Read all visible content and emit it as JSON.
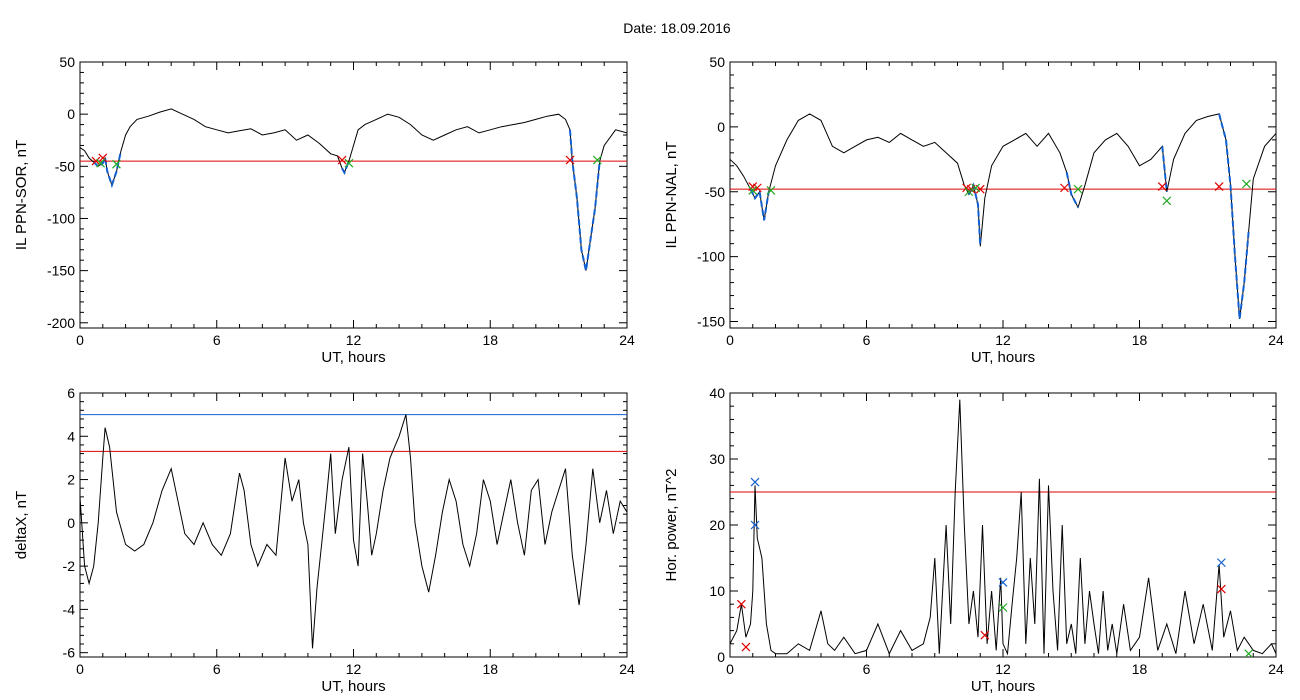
{
  "title": "Date:  18.09.2016",
  "colors": {
    "trace": "#000000",
    "threshold": "#e00000",
    "onset": "#e00000",
    "peak": "#22aa22",
    "substorm": "#1060d0",
    "cross_blue": "#1060d0"
  },
  "chart_data": [
    {
      "type": "line",
      "xlabel": "UT, hours",
      "ylabel": "IL PPN-SOR, nT",
      "xlim": [
        0,
        24
      ],
      "ylim": [
        -205,
        50
      ],
      "xticks": [
        0,
        6,
        12,
        18,
        24
      ],
      "yticks": [
        50,
        0,
        -50,
        -100,
        -150,
        -200
      ],
      "threshold": -45,
      "series": [
        {
          "x": [
            0,
            0.2,
            0.4,
            0.6,
            0.8,
            1.0,
            1.1,
            1.2,
            1.4,
            1.6,
            1.8,
            2.0,
            2.2,
            2.5,
            3.0,
            3.5,
            4.0,
            4.5,
            5.0,
            5.5,
            6.0,
            6.5,
            7.0,
            7.5,
            8.0,
            8.5,
            9.0,
            9.5,
            10.0,
            10.5,
            11.0,
            11.3,
            11.5,
            11.6,
            11.8,
            12.0,
            12.2,
            12.5,
            13.0,
            13.5,
            14.0,
            14.5,
            15.0,
            15.5,
            16.0,
            16.5,
            17.0,
            17.5,
            18.0,
            18.5,
            19.0,
            19.5,
            20.0,
            20.5,
            21.0,
            21.3,
            21.5,
            21.6,
            21.8,
            22.0,
            22.2,
            22.4,
            22.6,
            22.8,
            23.0,
            23.5,
            24.0
          ],
          "y": [
            -32,
            -35,
            -42,
            -46,
            -50,
            -47,
            -42,
            -55,
            -68,
            -55,
            -35,
            -20,
            -12,
            -5,
            -2,
            2,
            5,
            0,
            -5,
            -12,
            -15,
            -18,
            -16,
            -14,
            -20,
            -18,
            -15,
            -25,
            -20,
            -28,
            -38,
            -40,
            -52,
            -56,
            -45,
            -30,
            -15,
            -10,
            -5,
            0,
            -3,
            -10,
            -20,
            -25,
            -20,
            -15,
            -12,
            -18,
            -15,
            -12,
            -10,
            -8,
            -5,
            -2,
            0,
            -5,
            -15,
            -45,
            -80,
            -130,
            -150,
            -120,
            -90,
            -45,
            -30,
            -15,
            -18
          ]
        }
      ],
      "markers": [
        {
          "type": "onset",
          "x": [
            0.7,
            1.0,
            11.5,
            21.5
          ],
          "y": [
            -45,
            -42,
            -44,
            -44
          ]
        },
        {
          "type": "peak",
          "x": [
            0.9,
            1.6,
            11.8,
            22.7
          ],
          "y": [
            -47,
            -48,
            -47,
            -44
          ]
        }
      ],
      "highlights": [
        [
          0.6,
          1.8
        ],
        [
          11.4,
          11.9
        ],
        [
          21.5,
          22.8
        ]
      ]
    },
    {
      "type": "line",
      "xlabel": "UT, hours",
      "ylabel": "IL PPN-NAL, nT",
      "xlim": [
        0,
        24
      ],
      "ylim": [
        -155,
        50
      ],
      "xticks": [
        0,
        6,
        12,
        18,
        24
      ],
      "yticks": [
        50,
        0,
        -50,
        -100,
        -150
      ],
      "threshold": -48,
      "series": [
        {
          "x": [
            0,
            0.3,
            0.6,
            0.9,
            1.1,
            1.3,
            1.5,
            1.7,
            2.0,
            2.5,
            3.0,
            3.5,
            4.0,
            4.5,
            5.0,
            5.5,
            6.0,
            6.5,
            7.0,
            7.5,
            8.0,
            8.5,
            9.0,
            9.5,
            10.0,
            10.3,
            10.5,
            10.7,
            10.9,
            11.0,
            11.2,
            11.5,
            12.0,
            12.5,
            13.0,
            13.5,
            14.0,
            14.5,
            14.8,
            15.0,
            15.3,
            15.6,
            16.0,
            16.5,
            17.0,
            17.5,
            18.0,
            18.5,
            19.0,
            19.2,
            19.5,
            20.0,
            20.5,
            21.0,
            21.5,
            21.8,
            22.0,
            22.2,
            22.4,
            22.6,
            22.8,
            23.0,
            23.5,
            24.0
          ],
          "y": [
            -25,
            -30,
            -38,
            -48,
            -55,
            -50,
            -72,
            -50,
            -30,
            -10,
            5,
            10,
            5,
            -15,
            -20,
            -15,
            -10,
            -8,
            -12,
            -5,
            -10,
            -15,
            -12,
            -20,
            -28,
            -45,
            -52,
            -45,
            -60,
            -92,
            -55,
            -30,
            -15,
            -10,
            -5,
            -15,
            -5,
            -20,
            -35,
            -52,
            -62,
            -45,
            -20,
            -10,
            -5,
            -15,
            -30,
            -25,
            -15,
            -50,
            -25,
            -5,
            5,
            8,
            10,
            -10,
            -45,
            -100,
            -148,
            -120,
            -80,
            -40,
            -15,
            -5
          ]
        }
      ],
      "markers": [
        {
          "type": "onset",
          "x": [
            1.0,
            1.2,
            10.4,
            10.6,
            11.0,
            14.7,
            19.0,
            21.5
          ],
          "y": [
            -46,
            -47,
            -47,
            -48,
            -48,
            -47,
            -46,
            -46
          ]
        },
        {
          "type": "peak",
          "x": [
            1.0,
            1.8,
            10.5,
            10.8,
            15.3,
            19.2,
            22.7
          ],
          "y": [
            -49,
            -49,
            -50,
            -47,
            -48,
            -57,
            -44
          ]
        }
      ],
      "highlights": [
        [
          0.9,
          1.8
        ],
        [
          10.4,
          11.1
        ],
        [
          14.7,
          15.4
        ],
        [
          19.0,
          19.3
        ],
        [
          21.5,
          22.8
        ]
      ]
    },
    {
      "type": "line",
      "xlabel": "UT, hours",
      "ylabel": "deltaX, nT",
      "xlim": [
        0,
        24
      ],
      "ylim": [
        -6.2,
        6
      ],
      "xticks": [
        0,
        6,
        12,
        18,
        24
      ],
      "yticks": [
        6,
        4,
        2,
        0,
        -2,
        -4,
        -6
      ],
      "threshold": 3.3,
      "upper_threshold": 5.0,
      "series": [
        {
          "x": [
            0,
            0.2,
            0.4,
            0.6,
            0.8,
            1.0,
            1.1,
            1.3,
            1.6,
            2.0,
            2.4,
            2.8,
            3.2,
            3.6,
            4.0,
            4.3,
            4.6,
            5.0,
            5.4,
            5.8,
            6.2,
            6.6,
            7.0,
            7.2,
            7.5,
            7.8,
            8.2,
            8.6,
            9.0,
            9.3,
            9.6,
            9.8,
            10.0,
            10.2,
            10.4,
            10.6,
            10.8,
            11.0,
            11.2,
            11.5,
            11.8,
            12.0,
            12.2,
            12.4,
            12.6,
            12.8,
            13.0,
            13.3,
            13.6,
            14.0,
            14.3,
            14.5,
            14.7,
            15.0,
            15.3,
            15.6,
            15.9,
            16.2,
            16.5,
            16.8,
            17.1,
            17.4,
            17.7,
            18.0,
            18.3,
            18.6,
            18.9,
            19.2,
            19.5,
            19.8,
            20.1,
            20.4,
            20.7,
            21.0,
            21.3,
            21.6,
            21.9,
            22.2,
            22.5,
            22.8,
            23.1,
            23.4,
            23.7,
            24.0
          ],
          "y": [
            1.2,
            -2,
            -2.8,
            -2,
            0,
            3,
            4.4,
            3.5,
            0.5,
            -1,
            -1.3,
            -1,
            0,
            1.5,
            2.5,
            1,
            -0.5,
            -1,
            0,
            -1,
            -1.5,
            -0.5,
            2.3,
            1.5,
            -1,
            -2,
            -1,
            -1.5,
            3,
            1,
            2,
            0,
            -1,
            -5.8,
            -3,
            -1,
            1,
            3.2,
            -0.5,
            2,
            3.5,
            -0.8,
            -2,
            3.2,
            1,
            -1.5,
            -0.5,
            1.5,
            3,
            4,
            5,
            3,
            0,
            -2,
            -3.2,
            -1.5,
            0.5,
            2,
            1,
            -1,
            -2,
            -0.5,
            2,
            1,
            -1,
            0.5,
            2,
            0,
            -1.5,
            1.5,
            2,
            -1,
            0.5,
            1.5,
            2.5,
            -1.5,
            -3.8,
            -1,
            2.5,
            0,
            1.5,
            -0.5,
            1,
            0.5
          ]
        }
      ],
      "markers": [],
      "highlights": []
    },
    {
      "type": "line",
      "xlabel": "UT, hours",
      "ylabel": "Hor. power, nT^2",
      "xlim": [
        0,
        24
      ],
      "ylim": [
        0,
        40
      ],
      "xticks": [
        0,
        6,
        12,
        18,
        24
      ],
      "yticks": [
        0,
        10,
        20,
        30,
        40
      ],
      "threshold": 25,
      "series": [
        {
          "x": [
            0,
            0.3,
            0.5,
            0.7,
            0.9,
            1.0,
            1.1,
            1.2,
            1.4,
            1.6,
            1.8,
            2.0,
            2.5,
            3.0,
            3.5,
            4.0,
            4.3,
            4.6,
            5.0,
            5.5,
            6.0,
            6.5,
            7.0,
            7.5,
            8.0,
            8.5,
            8.8,
            9.0,
            9.2,
            9.5,
            9.7,
            9.9,
            10.1,
            10.3,
            10.5,
            10.7,
            10.9,
            11.1,
            11.3,
            11.5,
            11.7,
            11.9,
            12.0,
            12.2,
            12.4,
            12.6,
            12.8,
            13.0,
            13.2,
            13.4,
            13.6,
            13.8,
            14.0,
            14.2,
            14.4,
            14.6,
            14.8,
            15.0,
            15.2,
            15.4,
            15.6,
            15.8,
            16.0,
            16.2,
            16.4,
            16.6,
            16.8,
            17.0,
            17.3,
            17.6,
            18.0,
            18.4,
            18.8,
            19.2,
            19.6,
            20.0,
            20.4,
            20.8,
            21.2,
            21.5,
            21.7,
            22.0,
            22.3,
            22.6,
            23.0,
            23.4,
            23.8,
            24.0
          ],
          "y": [
            2,
            4,
            8,
            3,
            5,
            10,
            26,
            18,
            15,
            5,
            1,
            0.5,
            0.5,
            2,
            1,
            7,
            2,
            1,
            3,
            0.5,
            1,
            5,
            0.5,
            4,
            1,
            2,
            6,
            15,
            0.5,
            20,
            5,
            25,
            39,
            20,
            5,
            10,
            3,
            20,
            2,
            10,
            1,
            12,
            2,
            0.5,
            8,
            15,
            25,
            2,
            15,
            5,
            27,
            0.5,
            26,
            10,
            1,
            20,
            2,
            5,
            0.5,
            15,
            2,
            10,
            5,
            0.5,
            10,
            1,
            5,
            0.5,
            8,
            1,
            3,
            12,
            1,
            5,
            0.5,
            10,
            2,
            8,
            1,
            14,
            3,
            7,
            1,
            3,
            1,
            0.5,
            2,
            0.5
          ]
        }
      ],
      "markers": [
        {
          "type": "onset",
          "x": [
            0.5,
            0.7,
            11.2,
            21.6
          ],
          "y": [
            8,
            1.5,
            3.3,
            10.3
          ]
        },
        {
          "type": "peak",
          "x": [
            12.0,
            22.8
          ],
          "y": [
            7.5,
            0.5
          ]
        },
        {
          "type": "substorm",
          "x": [
            1.1,
            1.1,
            12.0,
            21.6
          ],
          "y": [
            20,
            26.5,
            11.3,
            14.3
          ]
        }
      ],
      "highlights": []
    }
  ]
}
